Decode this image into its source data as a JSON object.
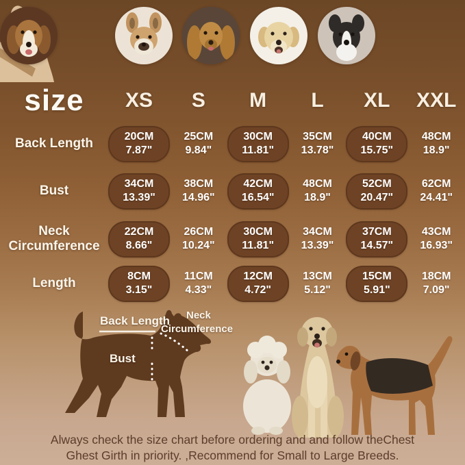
{
  "brand": {
    "logo_icon": "french-bulldog-head-silhouette-icon"
  },
  "breed_photos": [
    {
      "name": "beagle-photo",
      "bg": "#5c3823"
    },
    {
      "name": "french-bulldog-photo",
      "bg": "#ece3d6"
    },
    {
      "name": "cocker-spaniel-photo",
      "bg": "#594639"
    },
    {
      "name": "golden-retriever-photo",
      "bg": "#f4f0e7"
    },
    {
      "name": "border-collie-photo",
      "bg": "#cdc3b9"
    }
  ],
  "size_chart": {
    "title": "size",
    "columns": [
      "XS",
      "S",
      "M",
      "L",
      "XL",
      "XXL"
    ],
    "highlighted_column_indexes": [
      0,
      2,
      4
    ],
    "rows": [
      {
        "label": "Back Length",
        "values": [
          {
            "cm": "20CM",
            "in": "7.87\""
          },
          {
            "cm": "25CM",
            "in": "9.84\""
          },
          {
            "cm": "30CM",
            "in": "11.81\""
          },
          {
            "cm": "35CM",
            "in": "13.78\""
          },
          {
            "cm": "40CM",
            "in": "15.75\""
          },
          {
            "cm": "48CM",
            "in": "18.9\""
          }
        ]
      },
      {
        "label": "Bust",
        "values": [
          {
            "cm": "34CM",
            "in": "13.39\""
          },
          {
            "cm": "38CM",
            "in": "14.96\""
          },
          {
            "cm": "42CM",
            "in": "16.54\""
          },
          {
            "cm": "48CM",
            "in": "18.9\""
          },
          {
            "cm": "52CM",
            "in": "20.47\""
          },
          {
            "cm": "62CM",
            "in": "24.41\""
          }
        ]
      },
      {
        "label": "Neck Circumference",
        "values": [
          {
            "cm": "22CM",
            "in": "8.66\""
          },
          {
            "cm": "26CM",
            "in": "10.24\""
          },
          {
            "cm": "30CM",
            "in": "11.81\""
          },
          {
            "cm": "34CM",
            "in": "13.39\""
          },
          {
            "cm": "37CM",
            "in": "14.57\""
          },
          {
            "cm": "43CM",
            "in": "16.93\""
          }
        ]
      },
      {
        "label": "Length",
        "values": [
          {
            "cm": "8CM",
            "in": "3.15\""
          },
          {
            "cm": "11CM",
            "in": "4.33\""
          },
          {
            "cm": "12CM",
            "in": "4.72\""
          },
          {
            "cm": "13CM",
            "in": "5.12\""
          },
          {
            "cm": "15CM",
            "in": "5.91\""
          },
          {
            "cm": "18CM",
            "in": "7.09\""
          }
        ]
      }
    ]
  },
  "measurement_diagram": {
    "back_length_label": "Back Length",
    "neck_label_line1": "Neck",
    "neck_label_line2": "Circumference",
    "bust_label": "Bust"
  },
  "footer": {
    "line1": "Always check the size chart before ordering and and follow theChest",
    "line2": "Ghest Girth in priority. ,Recommend for Small to Large Breeds."
  },
  "colors": {
    "background_top": "#6c4726",
    "background_bottom": "#ccae97",
    "highlight_bubble": "#6e4325",
    "table_text": "#ffffff",
    "footer_text": "#5b3d2b",
    "diagram_silhouette": "#5e3a1f",
    "logo_silhouette": "#dcc09b"
  },
  "chart_data": {
    "type": "table",
    "title": "size",
    "columns": [
      "XS",
      "S",
      "M",
      "L",
      "XL",
      "XXL"
    ],
    "rows": [
      {
        "label": "Back Length",
        "cm": [
          20,
          25,
          30,
          35,
          40,
          48
        ],
        "inches": [
          7.87,
          9.84,
          11.81,
          13.78,
          15.75,
          18.9
        ]
      },
      {
        "label": "Bust",
        "cm": [
          34,
          38,
          42,
          48,
          52,
          62
        ],
        "inches": [
          13.39,
          14.96,
          16.54,
          18.9,
          20.47,
          24.41
        ]
      },
      {
        "label": "Neck Circumference",
        "cm": [
          22,
          26,
          30,
          34,
          37,
          43
        ],
        "inches": [
          8.66,
          10.24,
          11.81,
          13.39,
          14.57,
          16.93
        ]
      },
      {
        "label": "Length",
        "cm": [
          8,
          11,
          12,
          13,
          15,
          18
        ],
        "inches": [
          3.15,
          4.33,
          4.72,
          5.12,
          5.91,
          7.09
        ]
      }
    ],
    "notes": "Columns XS, M and XL are shown inside dark highlight bubbles."
  }
}
